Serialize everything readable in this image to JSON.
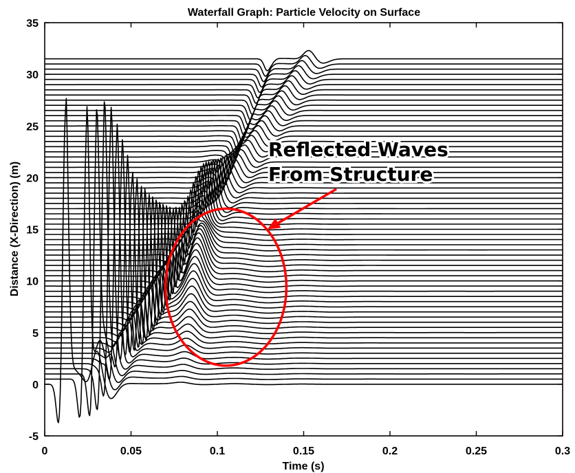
{
  "chart_data": {
    "type": "line",
    "title": "Waterfall Graph:  Particle Velocity on Surface",
    "xlabel": "Time (s)",
    "ylabel": "Distance (X-Direction) (m)",
    "xlim": [
      0,
      0.3
    ],
    "ylim": [
      -5,
      35
    ],
    "xticks": [
      "0",
      "0.05",
      "0.1",
      "0.15",
      "0.2",
      "0.25",
      "0.3"
    ],
    "yticks": [
      "-5",
      "0",
      "5",
      "10",
      "15",
      "20",
      "25",
      "30",
      "35"
    ],
    "grid": false,
    "traces": {
      "count": 64,
      "distance_start": 0,
      "distance_end": 31.5,
      "color": "#000000"
    },
    "features": {
      "direct_wave_arrival_time_at_0m": 0.012,
      "direct_wave_arrival_time_at_31_5m": 0.132,
      "direct_wave_peak_value": 27.3,
      "direct_wave_trough_value": -5,
      "second_wave_arrival_time_at_0m": 0.03,
      "second_wave_arrival_time_at_31_5m": 0.153
    },
    "annotation": {
      "lines": [
        "Reflected Waves",
        "From Structure"
      ],
      "highlight_center": [
        0.105,
        9.4
      ],
      "highlight_radius": [
        0.035,
        7.6
      ],
      "arrow_from": [
        0.169,
        18.9
      ],
      "arrow_to": [
        0.129,
        15.0
      ],
      "highlight_color": "#ff0000"
    }
  }
}
